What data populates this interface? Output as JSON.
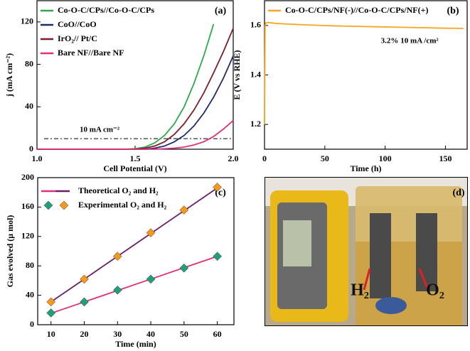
{
  "chart_data": [
    {
      "type": "line",
      "annotation": "(a)",
      "xlabel": "Cell Potential (V)",
      "ylabel": "j (mA cm⁻²)",
      "x": [
        1.0,
        1.1,
        1.2,
        1.3,
        1.4,
        1.45,
        1.5,
        1.55,
        1.6,
        1.65,
        1.7,
        1.75,
        1.8,
        1.85,
        1.9,
        1.95,
        2.0
      ],
      "series": [
        {
          "name": "Co-O-C/CPs//Co-O-C/CPs",
          "color": "#2ea84a",
          "values": [
            0,
            0,
            0,
            0,
            0,
            0,
            0.5,
            2,
            6,
            13,
            24,
            40,
            62,
            88,
            118,
            null,
            null
          ]
        },
        {
          "name": "CoO//CoO",
          "color": "#1f2a6e",
          "values": [
            0,
            0,
            0,
            0,
            0,
            0,
            0,
            0,
            1,
            3,
            7,
            13,
            22,
            34,
            49,
            67,
            88
          ]
        },
        {
          "name": "IrO₂// Pt/C",
          "color": "#7a1e2e",
          "values": [
            0,
            0,
            0,
            0,
            0,
            0,
            0,
            1,
            3,
            7,
            14,
            24,
            37,
            53,
            72,
            92,
            114
          ]
        },
        {
          "name": "Bare NF//Bare NF",
          "color": "#e0307a",
          "values": [
            0,
            0,
            0,
            0,
            0,
            0,
            0,
            0,
            0,
            0.5,
            1,
            2,
            4,
            7,
            12,
            19,
            27
          ]
        }
      ],
      "reference_line": {
        "value": 10,
        "label": "10 mA cm⁻²"
      },
      "xlim": [
        1.0,
        2.0
      ],
      "xticks": [
        {
          "value": 1.0,
          "label": "1.0"
        },
        1.5,
        {
          "value": 2.0,
          "label": "2.0"
        }
      ],
      "ylim": [
        0,
        140
      ],
      "yticks": [
        0,
        40,
        80,
        120
      ]
    },
    {
      "type": "line",
      "annotation": "(b)",
      "xlabel": "Time (h)",
      "ylabel": "E (V vs RHE)",
      "x": [
        0,
        0.5,
        1,
        3,
        10,
        30,
        60,
        90,
        120,
        150,
        165
      ],
      "series": [
        {
          "name": "Co-O-C/CPs/NF(-)//Co-O-C/CPs/NF(+)",
          "color": "#f5a623",
          "values": [
            1.2,
            1.6,
            1.61,
            1.612,
            1.608,
            1.603,
            1.598,
            1.595,
            1.592,
            1.589,
            1.588
          ]
        }
      ],
      "annotations": [
        "3.2%",
        "10 mA /cm²"
      ],
      "xlim": [
        0,
        168
      ],
      "xticks": [
        0,
        50,
        100,
        150
      ],
      "ylim": [
        1.1,
        1.7
      ],
      "yticks": [
        1.2,
        1.4,
        1.6
      ]
    },
    {
      "type": "line",
      "annotation": "(c)",
      "xlabel": "Time (min)",
      "ylabel": "Gas evolved (μ mol)",
      "x": [
        10,
        20,
        30,
        40,
        50,
        60
      ],
      "legend": [
        "Theoretical O₂ and H₂",
        "Experimental O₂ and H₂"
      ],
      "series": [
        {
          "style": "line",
          "color": "#e0307a",
          "values": [
            15.5,
            31,
            46.5,
            62,
            77.5,
            93
          ]
        },
        {
          "style": "line",
          "color": "#6a1f6a",
          "values": [
            31,
            62,
            93,
            124,
            155,
            186
          ]
        },
        {
          "style": "marker",
          "color": "#1fa079",
          "values": [
            16,
            31,
            47,
            62,
            77,
            93
          ]
        },
        {
          "style": "marker",
          "color": "#f39a1e",
          "values": [
            31,
            62,
            93,
            125,
            156,
            187
          ]
        }
      ],
      "xlim": [
        6,
        65
      ],
      "xticks": [
        10,
        20,
        30,
        40,
        50,
        60
      ],
      "ylim": [
        0,
        200
      ],
      "yticks": [
        0,
        40,
        80,
        120,
        160,
        200
      ]
    }
  ],
  "photo": {
    "annotation": "(d)",
    "labels": [
      "H₂",
      "O₂"
    ]
  }
}
